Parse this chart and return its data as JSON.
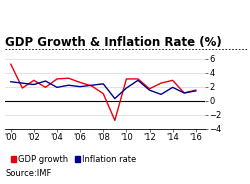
{
  "title": "GDP Growth & Inflation Rate (%)",
  "years": [
    2000,
    2001,
    2002,
    2003,
    2004,
    2005,
    2006,
    2007,
    2008,
    2009,
    2010,
    2011,
    2012,
    2013,
    2014,
    2015,
    2016
  ],
  "gdp_growth": [
    5.2,
    1.8,
    2.9,
    1.9,
    3.1,
    3.2,
    2.6,
    2.1,
    1.0,
    -2.8,
    3.1,
    3.1,
    1.7,
    2.5,
    2.9,
    1.1,
    1.5
  ],
  "inflation_rate": [
    2.7,
    2.5,
    2.3,
    2.8,
    1.9,
    2.2,
    2.0,
    2.2,
    2.4,
    0.3,
    1.8,
    2.9,
    1.5,
    0.9,
    1.9,
    1.1,
    1.4
  ],
  "gdp_color": "#e8000d",
  "inflation_color": "#00008b",
  "background_color": "#ffffff",
  "ylim": [
    -4,
    7
  ],
  "yticks": [
    -4,
    -2,
    0,
    2,
    4,
    6
  ],
  "xtick_years": [
    2000,
    2002,
    2004,
    2006,
    2008,
    2010,
    2012,
    2014,
    2016
  ],
  "xtick_labels": [
    "'00",
    "'02",
    "'04",
    "'06",
    "'08",
    "'10",
    "'12",
    "'14",
    "'16"
  ],
  "source_text": "Source:IMF",
  "legend_gdp": "GDP growth",
  "legend_inflation": "Inflation rate",
  "title_fontsize": 8.5,
  "axis_fontsize": 6,
  "legend_fontsize": 6,
  "source_fontsize": 6
}
